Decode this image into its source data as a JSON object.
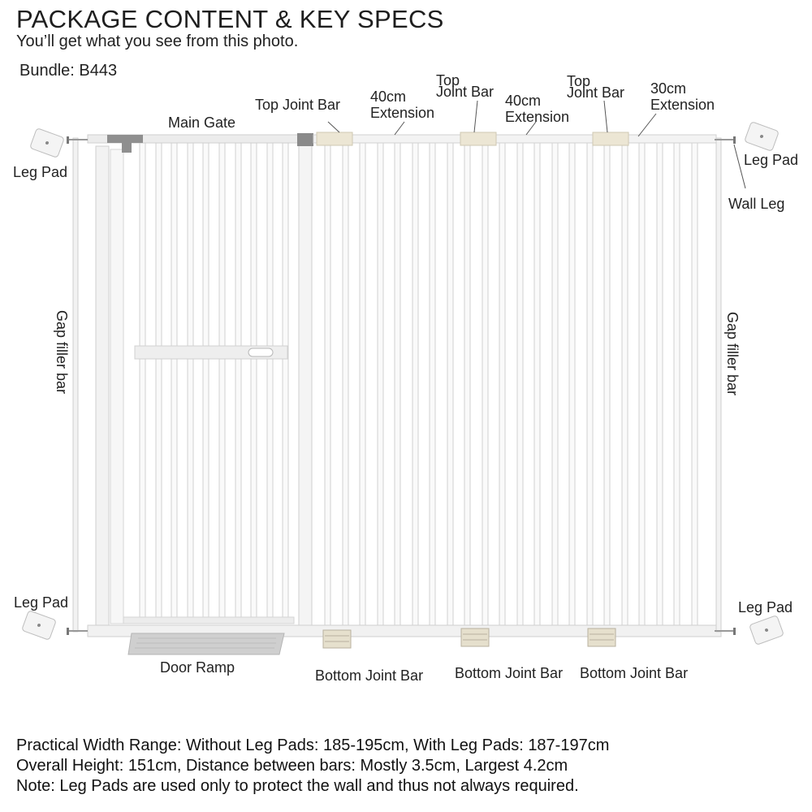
{
  "header": {
    "title": "PACKAGE CONTENT & KEY SPECS",
    "subtitle": "You’ll get what you see from this photo.",
    "bundle": "Bundle: B443"
  },
  "labels": {
    "main_gate": "Main Gate",
    "top_joint_bar": "Top Joint Bar",
    "top_joint_bar_2_line1": "Top",
    "top_joint_bar_2_line2": "Joint Bar",
    "top_joint_bar_3_line1": "Top",
    "top_joint_bar_3_line2": "Joint Bar",
    "extension_40_a_line1": "40cm",
    "extension_40_a_line2": "Extension",
    "extension_40_b_line1": "40cm",
    "extension_40_b_line2": "Extension",
    "extension_30_line1": "30cm",
    "extension_30_line2": "Extension",
    "leg_pad_top_left": "Leg Pad",
    "leg_pad_top_right": "Leg Pad",
    "leg_pad_bottom_left": "Leg Pad",
    "leg_pad_bottom_right": "Leg Pad",
    "wall_leg": "Wall Leg",
    "gap_filler_left": "Gap filler bar",
    "gap_filler_right": "Gap filler bar",
    "door_ramp": "Door Ramp",
    "bottom_joint_bar_1": "Bottom Joint Bar",
    "bottom_joint_bar_2": "Bottom Joint Bar",
    "bottom_joint_bar_3": "Bottom Joint Bar"
  },
  "specs": {
    "line1": "Practical Width Range: Without Leg Pads:  185-195cm,  With Leg Pads: 187-197cm",
    "line2": "Overall Height: 151cm, Distance between bars: Mostly 3.5cm, Largest 4.2cm",
    "line3": "Note: Leg Pads are used only to protect the wall and thus not always required."
  },
  "colors": {
    "frame": "#eeeeee",
    "frame_edge": "#c9c9c9",
    "joint": "#e8e2d0",
    "latch": "#8a8a8a",
    "ramp": "#c8c8c8"
  }
}
